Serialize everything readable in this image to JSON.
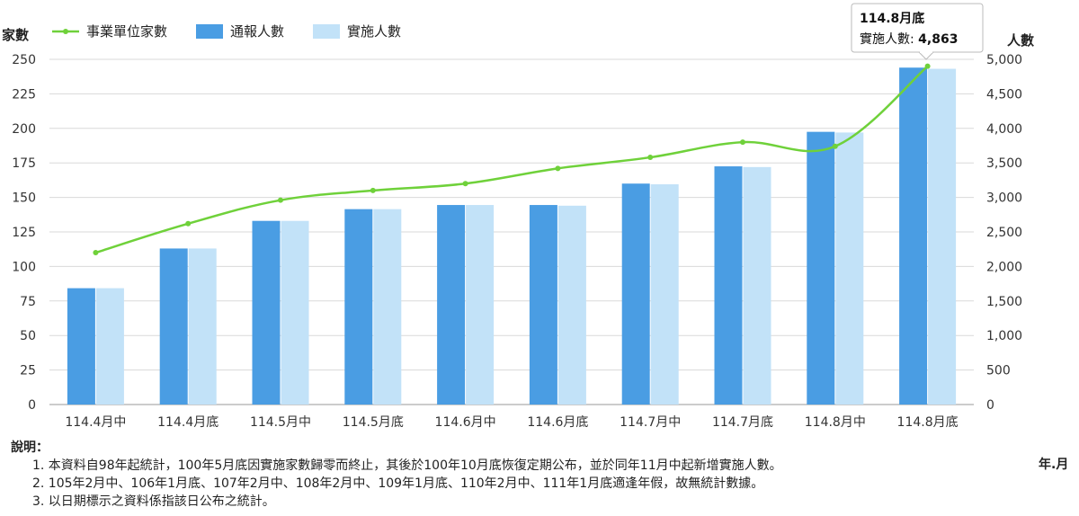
{
  "chart_data": {
    "type": "bar",
    "categories": [
      "114.4月中",
      "114.4月底",
      "114.5月中",
      "114.5月底",
      "114.6月中",
      "114.6月底",
      "114.7月中",
      "114.7月底",
      "114.8月中",
      "114.8月底"
    ],
    "series": [
      {
        "name": "事業單位家數",
        "type": "line",
        "axis": "left",
        "color": "#6fd13a",
        "values": [
          110,
          131,
          148,
          155,
          160,
          171,
          179,
          190,
          187,
          245
        ]
      },
      {
        "name": "通報人數",
        "type": "bar",
        "axis": "right",
        "color": "#4a9de3",
        "values": [
          1685,
          2260,
          2660,
          2830,
          2890,
          2890,
          3200,
          3450,
          3950,
          4880
        ]
      },
      {
        "name": "實施人數",
        "type": "bar",
        "axis": "right",
        "color": "#c2e2f8",
        "values": [
          1685,
          2260,
          2660,
          2830,
          2890,
          2880,
          3190,
          3440,
          3940,
          4863
        ]
      }
    ],
    "y_left": {
      "label": "家數",
      "min": 0,
      "max": 250,
      "ticks": [
        "0",
        "25",
        "50",
        "75",
        "100",
        "125",
        "150",
        "175",
        "200",
        "225",
        "250"
      ]
    },
    "y_right": {
      "label": "人數",
      "min": 0,
      "max": 5000,
      "ticks": [
        "0",
        "500",
        "1,000",
        "1,500",
        "2,000",
        "2,500",
        "3,000",
        "3,500",
        "4,000",
        "4,500",
        "5,000"
      ]
    },
    "x_unit": "年.月",
    "legend_position": "top-left",
    "tooltip": {
      "title": "114.8月底",
      "label": "實施人數: ",
      "value": "4,863"
    }
  },
  "notes": {
    "title": "說明：",
    "items": [
      "1. 本資料自98年起統計，100年5月底因實施家數歸零而終止，其後於100年10月底恢復定期公布，並於同年11月中起新增實施人數。",
      "2. 105年2月中、106年1月底、107年2月中、108年2月中、109年1月底、110年2月中、111年1月底適逢年假，故無統計數據。",
      "3. 以日期標示之資料係指該日公布之統計。"
    ]
  }
}
